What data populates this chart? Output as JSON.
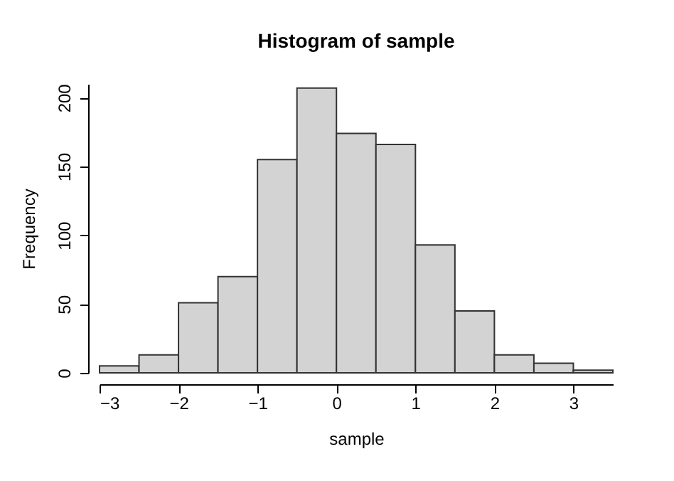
{
  "chart_data": {
    "type": "histogram",
    "title": "Histogram of sample",
    "xlabel": "sample",
    "ylabel": "Frequency",
    "bins": [
      -3,
      -2.5,
      -2,
      -1.5,
      -1,
      -0.5,
      0,
      0.5,
      1,
      1.5,
      2,
      2.5,
      3,
      3.5
    ],
    "values": [
      5,
      13,
      51,
      70,
      155,
      207,
      174,
      166,
      93,
      45,
      13,
      7,
      2
    ],
    "color": "#d3d3d3",
    "xlim": [
      -3,
      3.5
    ],
    "xticks": [
      -3,
      -2,
      -1,
      0,
      1,
      2,
      3
    ],
    "ylim": [
      0,
      210
    ],
    "yticks": [
      0,
      50,
      100,
      150,
      200
    ],
    "grid": false
  }
}
